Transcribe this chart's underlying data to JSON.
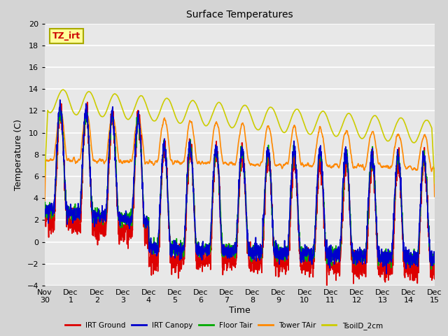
{
  "title": "Surface Temperatures",
  "xlabel": "Time",
  "ylabel": "Temperature (C)",
  "ylim": [
    -4,
    20
  ],
  "xlim_start": 0,
  "xlim_end": 15,
  "annotation_text": "TZ_irt",
  "annotation_box_color": "#ffff99",
  "annotation_border_color": "#aaaa00",
  "annotation_text_color": "#cc0000",
  "fig_bg_color": "#d4d4d4",
  "plot_bg_color": "#e8e8e8",
  "grid_color": "#ffffff",
  "series": [
    {
      "name": "IRT Ground",
      "color": "#dd0000",
      "lw": 1.2
    },
    {
      "name": "IRT Canopy",
      "color": "#0000cc",
      "lw": 1.2
    },
    {
      "name": "Floor Tair",
      "color": "#00aa00",
      "lw": 1.2
    },
    {
      "name": "Tower TAir",
      "color": "#ff8800",
      "lw": 1.2
    },
    {
      "name": "TsoilD_2cm",
      "color": "#cccc00",
      "lw": 1.2
    }
  ],
  "xtick_labels": [
    "Nov 30",
    "Dec 1",
    "Dec 2",
    "Dec 3",
    "Dec 4",
    "Dec 5",
    "Dec 6",
    "Dec 7",
    "Dec 8",
    "Dec 9",
    "Dec 10",
    "Dec 11",
    "Dec 12",
    "Dec 13",
    "Dec 14",
    "Dec 15"
  ],
  "xtick_positions": [
    0,
    1,
    2,
    3,
    4,
    5,
    6,
    7,
    8,
    9,
    10,
    11,
    12,
    13,
    14,
    15
  ],
  "ytick_positions": [
    -4,
    -2,
    0,
    2,
    4,
    6,
    8,
    10,
    12,
    14,
    16,
    18,
    20
  ]
}
